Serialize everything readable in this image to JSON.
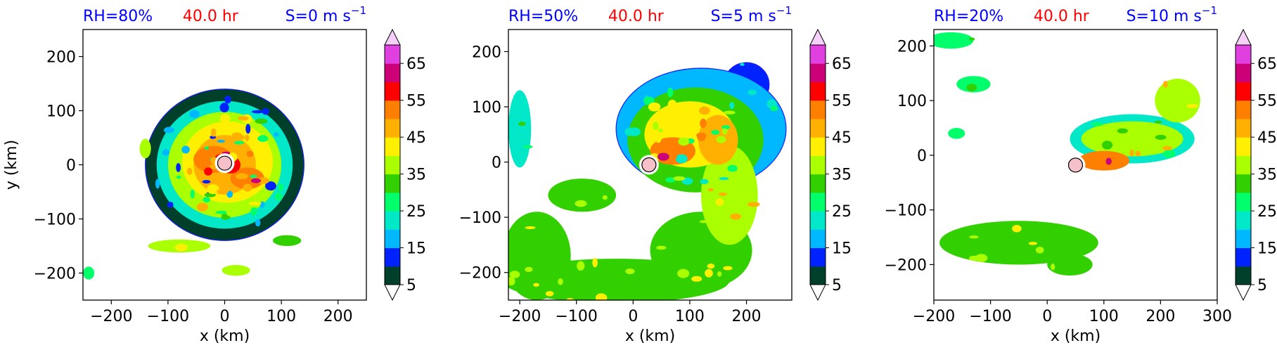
{
  "chart_data": [
    {
      "type": "heatmap",
      "title_left": "RH=80%",
      "title_center": "40.0 hr",
      "title_right_main": "S=0 m s",
      "title_right_sup": "−1",
      "xlabel": "x (km)",
      "ylabel": "y (km)",
      "xlim": [
        -250,
        250
      ],
      "ylim": [
        -250,
        250
      ],
      "xticks": [
        -200,
        -100,
        0,
        100,
        200
      ],
      "xtick_labels": [
        "−200",
        "−100",
        "0",
        "100",
        "200"
      ],
      "yticks": [
        -200,
        -100,
        0,
        100,
        200
      ],
      "ytick_labels": [
        "−200",
        "−100",
        "0",
        "100",
        "200"
      ],
      "center_marker": {
        "x": 0,
        "y": 3
      },
      "rain_structure": "compact symmetric ring, eyewall near center, spiral bands",
      "features": [
        {
          "x": 0,
          "y": 0,
          "rx": 140,
          "ry": 140,
          "level": 0
        },
        {
          "x": 0,
          "y": 0,
          "rx": 120,
          "ry": 118,
          "level": 3
        },
        {
          "x": 0,
          "y": 0,
          "rx": 100,
          "ry": 98,
          "level": 6
        },
        {
          "x": 5,
          "y": 5,
          "rx": 80,
          "ry": 75,
          "level": 7
        },
        {
          "x": 0,
          "y": 0,
          "rx": 55,
          "ry": 55,
          "level": 8
        },
        {
          "x": -20,
          "y": 10,
          "rx": 35,
          "ry": 25,
          "level": 9
        },
        {
          "x": 40,
          "y": -25,
          "rx": 30,
          "ry": 20,
          "level": 9
        },
        {
          "x": 10,
          "y": 0,
          "rx": 18,
          "ry": 16,
          "level": 10
        },
        {
          "x": -140,
          "y": 30,
          "rx": 10,
          "ry": 18,
          "level": 6
        },
        {
          "x": 110,
          "y": -140,
          "rx": 25,
          "ry": 10,
          "level": 5
        },
        {
          "x": 20,
          "y": -195,
          "rx": 25,
          "ry": 10,
          "level": 6
        },
        {
          "x": -80,
          "y": -150,
          "rx": 55,
          "ry": 12,
          "level": 6
        },
        {
          "x": -240,
          "y": -200,
          "rx": 10,
          "ry": 12,
          "level": 4
        }
      ]
    },
    {
      "type": "heatmap",
      "title_left": "RH=50%",
      "title_center": "40.0 hr",
      "title_right_main": "S=5 m s",
      "title_right_sup": "−1",
      "xlabel": "x (km)",
      "ylabel": "",
      "xlim": [
        -220,
        280
      ],
      "ylim": [
        -250,
        240
      ],
      "xticks": [
        -200,
        -100,
        0,
        100,
        200
      ],
      "xtick_labels": [
        "−200",
        "−100",
        "0",
        "100",
        "200"
      ],
      "yticks": [
        -200,
        -100,
        0,
        100,
        200
      ],
      "ytick_labels": [
        "−200",
        "−100",
        "0",
        "100",
        "200"
      ],
      "center_marker": {
        "x": 28,
        "y": -5
      },
      "rain_structure": "asymmetric, large comma-shaped band to east and north, southwest band",
      "features": [
        {
          "x": 120,
          "y": 60,
          "rx": 150,
          "ry": 110,
          "level": 2
        },
        {
          "x": 110,
          "y": 40,
          "rx": 120,
          "ry": 95,
          "level": 5
        },
        {
          "x": 100,
          "y": 50,
          "rx": 80,
          "ry": 60,
          "level": 7
        },
        {
          "x": 70,
          "y": 20,
          "rx": 40,
          "ry": 25,
          "level": 9
        },
        {
          "x": 170,
          "y": -60,
          "rx": 50,
          "ry": 90,
          "level": 6
        },
        {
          "x": 120,
          "y": -160,
          "rx": 90,
          "ry": 70,
          "level": 5
        },
        {
          "x": -30,
          "y": -215,
          "rx": 200,
          "ry": 40,
          "level": 5
        },
        {
          "x": -170,
          "y": -170,
          "rx": 60,
          "ry": 80,
          "level": 5
        },
        {
          "x": -200,
          "y": 60,
          "rx": 20,
          "ry": 70,
          "level": 3
        },
        {
          "x": -90,
          "y": -60,
          "rx": 60,
          "ry": 30,
          "level": 5
        },
        {
          "x": 200,
          "y": 140,
          "rx": 40,
          "ry": 40,
          "level": 1
        },
        {
          "x": 150,
          "y": 40,
          "rx": 35,
          "ry": 45,
          "level": 8
        }
      ]
    },
    {
      "type": "heatmap",
      "title_left": "RH=20%",
      "title_center": "40.0 hr",
      "title_right_main": "S=10 m s",
      "title_right_sup": "−1",
      "xlabel": "x (km)",
      "ylabel": "",
      "xlim": [
        -200,
        300
      ],
      "ylim": [
        -265,
        230
      ],
      "xticks": [
        -200,
        -100,
        0,
        100,
        200,
        300
      ],
      "xtick_labels": [
        "−200",
        "−100",
        "0",
        "100",
        "200",
        "300"
      ],
      "yticks": [
        -200,
        -100,
        0,
        100,
        200
      ],
      "ytick_labels": [
        "−200",
        "−100",
        "0",
        "100",
        "200"
      ],
      "center_marker": {
        "x": 50,
        "y": -18
      },
      "rain_structure": "dry, elongated band from center toward northeast, scattered cells in southwest",
      "features": [
        {
          "x": 150,
          "y": 30,
          "rx": 110,
          "ry": 45,
          "level": 3
        },
        {
          "x": 150,
          "y": 30,
          "rx": 90,
          "ry": 32,
          "level": 6
        },
        {
          "x": 100,
          "y": -10,
          "rx": 45,
          "ry": 18,
          "level": 9
        },
        {
          "x": 230,
          "y": 100,
          "rx": 40,
          "ry": 40,
          "level": 6
        },
        {
          "x": -50,
          "y": -160,
          "rx": 140,
          "ry": 40,
          "level": 5
        },
        {
          "x": 40,
          "y": -200,
          "rx": 40,
          "ry": 20,
          "level": 5
        },
        {
          "x": -170,
          "y": 210,
          "rx": 40,
          "ry": 15,
          "level": 4
        },
        {
          "x": -130,
          "y": 130,
          "rx": 30,
          "ry": 15,
          "level": 4
        },
        {
          "x": -160,
          "y": 40,
          "rx": 15,
          "ry": 10,
          "level": 4
        }
      ]
    }
  ],
  "colorbar": {
    "tick_labels": [
      "5",
      "15",
      "25",
      "35",
      "45",
      "55",
      "65"
    ],
    "levels": [
      5,
      10,
      15,
      20,
      25,
      30,
      35,
      40,
      45,
      50,
      55,
      60,
      65,
      70
    ],
    "colors": [
      "#00402a",
      "#0022ff",
      "#00b8ff",
      "#00e8c8",
      "#00ff6a",
      "#33d000",
      "#aaff00",
      "#ffef00",
      "#ffb000",
      "#ff7f00",
      "#ff0000",
      "#cc0077",
      "#e040e0",
      "#e8a0f0",
      "#f6d0f8"
    ]
  },
  "colors": {
    "title_side": "#0000ff",
    "title_center": "#ff0000",
    "center_marker_fill": "#f6c0c8"
  }
}
